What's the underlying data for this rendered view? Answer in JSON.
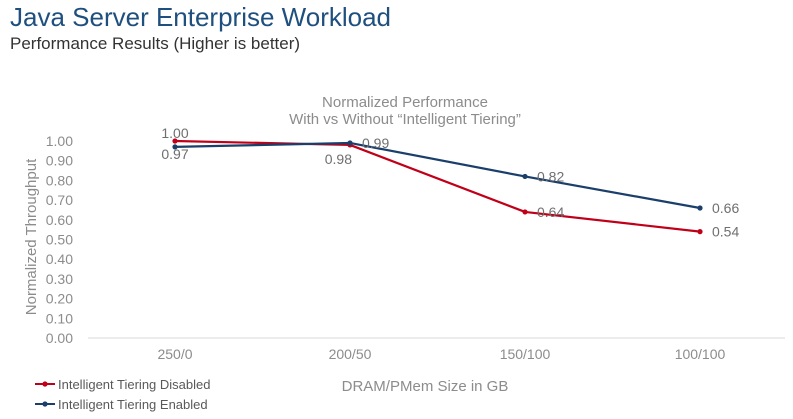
{
  "slide": {
    "title": "Java Server Enterprise Workload",
    "subtitle": "Performance Results (Higher is better)"
  },
  "chart_data": {
    "type": "line",
    "title": "Normalized Performance",
    "subtitle": "With vs Without “Intelligent Tiering”",
    "xlabel": "DRAM/PMem Size in GB",
    "ylabel": "Normalized Throughput",
    "categories": [
      "250/0",
      "200/50",
      "150/100",
      "100/100"
    ],
    "ylim": [
      0,
      1
    ],
    "yticks": [
      "0.00",
      "0.10",
      "0.20",
      "0.30",
      "0.40",
      "0.50",
      "0.60",
      "0.70",
      "0.80",
      "0.90",
      "1.00"
    ],
    "grid": false,
    "legend_position": "bottom-left",
    "series": [
      {
        "name": "Intelligent Tiering Disabled",
        "color": "#c00018",
        "values": [
          1.0,
          0.98,
          0.64,
          0.54
        ],
        "labels": [
          "1.00",
          "0.98",
          "0.64",
          "0.54"
        ]
      },
      {
        "name": "Intelligent Tiering  Enabled",
        "color": "#1a3f6b",
        "values": [
          0.97,
          0.99,
          0.82,
          0.66
        ],
        "labels": [
          "0.97",
          "0.99",
          "0.82",
          "0.66"
        ]
      }
    ]
  }
}
